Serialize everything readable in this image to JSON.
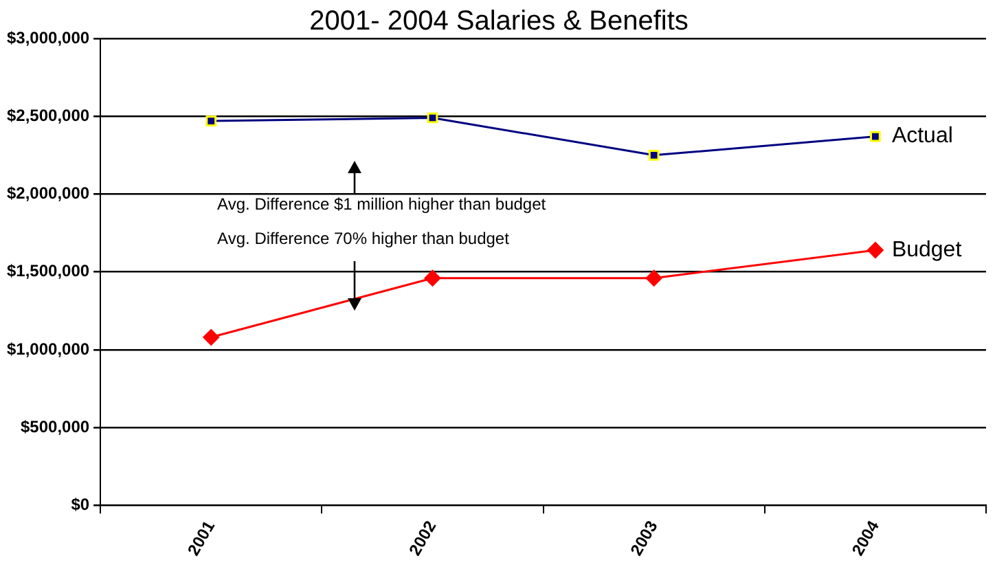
{
  "chart_data": {
    "type": "line",
    "title": "2001- 2004 Salaries & Benefits",
    "categories": [
      "2001",
      "2002",
      "2003",
      "2004"
    ],
    "series": [
      {
        "name": "Actual",
        "color": "#000080",
        "values": [
          2470000,
          2490000,
          2250000,
          2370000
        ],
        "marker": "square"
      },
      {
        "name": "Budget",
        "color": "#ff0000",
        "values": [
          1080000,
          1460000,
          1460000,
          1640000
        ],
        "marker": "diamond"
      }
    ],
    "ylim": [
      0,
      3000000
    ],
    "yticks": [
      {
        "value": 0,
        "label": "$0"
      },
      {
        "value": 500000,
        "label": "$500,000"
      },
      {
        "value": 1000000,
        "label": "$1,000,000"
      },
      {
        "value": 1500000,
        "label": "$1,500,000"
      },
      {
        "value": 2000000,
        "label": "$2,000,000"
      },
      {
        "value": 2500000,
        "label": "$2,500,000"
      },
      {
        "value": 3000000,
        "label": "$3,000,000"
      }
    ],
    "grid": "y",
    "legend": false,
    "annotations": [
      "Avg. Difference $1 million higher than budget",
      "Avg. Difference 70% higher than budget"
    ]
  }
}
